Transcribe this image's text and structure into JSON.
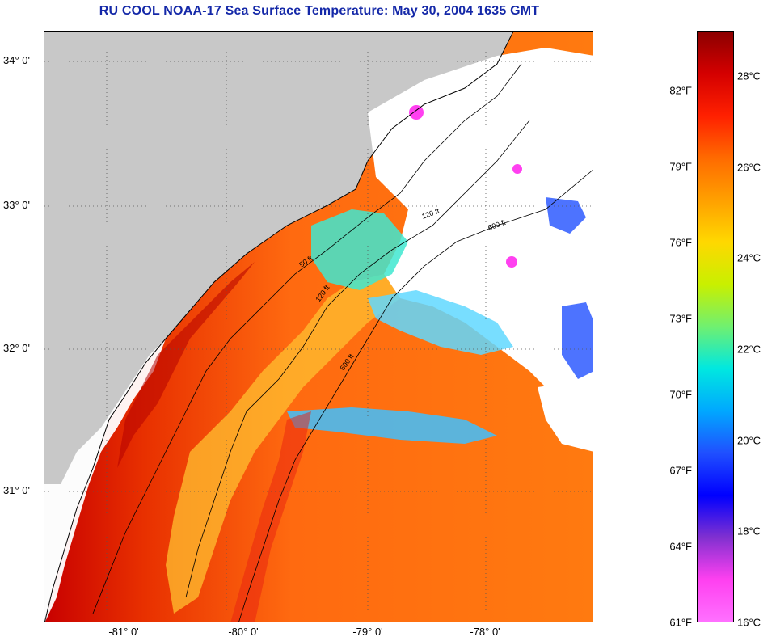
{
  "title": "RU COOL  NOAA-17  Sea Surface Temperature:  May 30, 2004 1635 GMT",
  "map": {
    "lat_labels": [
      "34° 0'",
      "33° 0'",
      "32° 0'",
      "31° 0'"
    ],
    "lon_labels": [
      "-81° 0'",
      "-80° 0'",
      "-79° 0'",
      "-78° 0'"
    ],
    "contour_labels": [
      "50 ft",
      "120 ft",
      "600 ft"
    ],
    "colors": {
      "land": "#c8c8c8",
      "cloud": "#ffffff",
      "warm": "#ff6a10",
      "hot": "#c80000",
      "mid": "#ffd000",
      "cool": "#40e8d0",
      "cold": "#2050ff",
      "coast": "#000000"
    }
  },
  "colorbar": {
    "fahrenheit": [
      "82°F",
      "79°F",
      "76°F",
      "73°F",
      "70°F",
      "67°F",
      "64°F",
      "61°F"
    ],
    "celsius": [
      "28°C",
      "26°C",
      "24°C",
      "22°C",
      "20°C",
      "18°C",
      "16°C"
    ],
    "stops": [
      "#8b0000",
      "#d40000",
      "#ff2000",
      "#ff6a00",
      "#ffa000",
      "#ffd800",
      "#c8f000",
      "#70f070",
      "#00e8e0",
      "#00a8ff",
      "#2050ff",
      "#0000ff",
      "#8030d0",
      "#ff40f0",
      "#ff70ff"
    ]
  }
}
